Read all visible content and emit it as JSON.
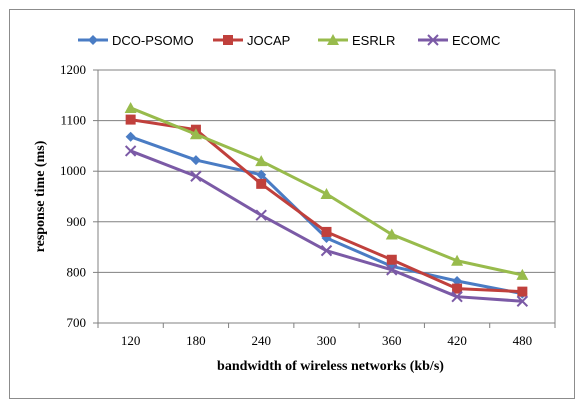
{
  "chart_data": {
    "type": "line",
    "xlabel": "bandwidth of wireless networks (kb/s)",
    "ylabel": "response time (ms)",
    "categories": [
      "120",
      "180",
      "240",
      "300",
      "360",
      "420",
      "480"
    ],
    "ylim": [
      700,
      1200
    ],
    "yticks": [
      700,
      800,
      900,
      1000,
      1100,
      1200
    ],
    "grid": true,
    "legend_position": "top",
    "series": [
      {
        "name": "DCO-PSOMO",
        "color": "#4a7cc4",
        "marker": "diamond",
        "values": [
          1068,
          1022,
          993,
          868,
          812,
          783,
          758
        ]
      },
      {
        "name": "JOCAP",
        "color": "#c0403c",
        "marker": "square",
        "values": [
          1102,
          1082,
          975,
          880,
          825,
          768,
          762
        ]
      },
      {
        "name": "ESRLR",
        "color": "#98bb4c",
        "marker": "triangle",
        "values": [
          1125,
          1073,
          1020,
          955,
          875,
          823,
          795
        ]
      },
      {
        "name": "ECOMC",
        "color": "#7b5aa6",
        "marker": "x",
        "values": [
          1040,
          990,
          913,
          843,
          805,
          752,
          743
        ]
      }
    ]
  }
}
